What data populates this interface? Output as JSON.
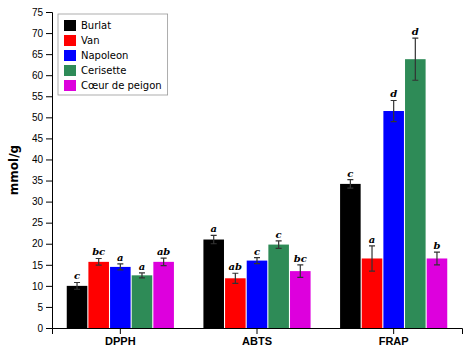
{
  "chart_data": {
    "type": "bar",
    "categories": [
      "DPPH",
      "ABTS",
      "FRAP"
    ],
    "series": [
      {
        "name": "Burlat",
        "color": "#000000",
        "values": [
          10.0,
          21.0,
          34.2
        ],
        "errors": [
          0.8,
          1.0,
          1.0
        ],
        "annotations": [
          "c",
          "a",
          "c"
        ]
      },
      {
        "name": "Van",
        "color": "#ff0000",
        "values": [
          15.7,
          11.8,
          16.5
        ],
        "errors": [
          0.8,
          1.2,
          3.0
        ],
        "annotations": [
          "bc",
          "ab",
          "a"
        ]
      },
      {
        "name": "Napoleon",
        "color": "#0000ff",
        "values": [
          14.5,
          16.0,
          51.5
        ],
        "errors": [
          0.7,
          0.7,
          2.5
        ],
        "annotations": [
          "a",
          "c",
          "d"
        ]
      },
      {
        "name": "Cerisette",
        "color": "#2e8b57",
        "values": [
          12.5,
          19.8,
          63.8
        ],
        "errors": [
          0.6,
          0.9,
          5.0
        ],
        "annotations": [
          "a",
          "c",
          "d"
        ]
      },
      {
        "name": "Cœur de peigon",
        "color": "#dd00dd",
        "values": [
          15.7,
          13.5,
          16.5
        ],
        "errors": [
          0.9,
          1.5,
          1.5
        ],
        "annotations": [
          "ab",
          "bc",
          "b"
        ]
      }
    ],
    "ylabel": "mmol/g",
    "ylim": [
      0,
      75
    ],
    "yticks": [
      0,
      5,
      10,
      15,
      20,
      25,
      30,
      35,
      40,
      45,
      50,
      55,
      60,
      65,
      70,
      75
    ],
    "grid": false,
    "legend": "upper left"
  }
}
